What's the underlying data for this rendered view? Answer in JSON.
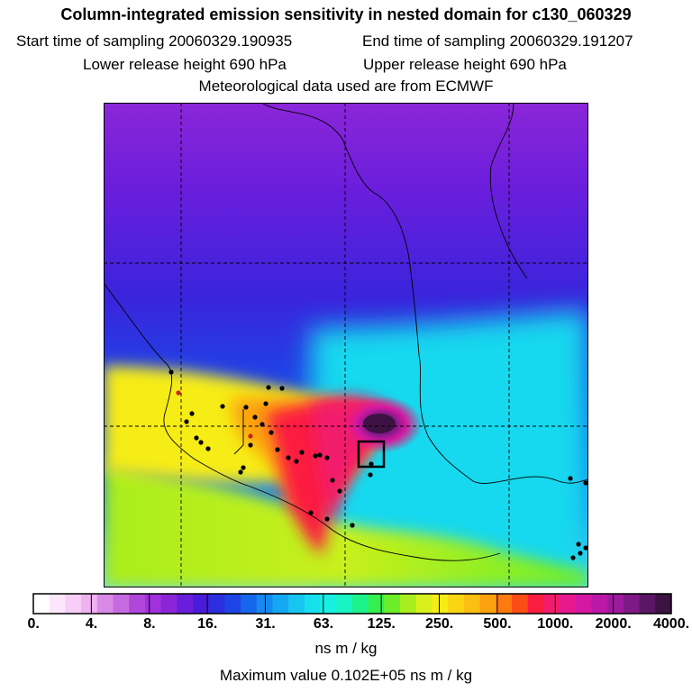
{
  "header": {
    "title": "Column-integrated emission sensitivity in nested domain for c130_060329",
    "start_time": "Start time of sampling 20060329.190935",
    "end_time": "End time of sampling 20060329.191207",
    "lower_release": "Lower release height  690 hPa",
    "upper_release": "Upper release height  690 hPa",
    "met_data": "Meteorological data used are from ECMWF"
  },
  "colorbar": {
    "colors": [
      "#ffffff",
      "#fde6fb",
      "#f8cdf6",
      "#eeb2f0",
      "#d98ae6",
      "#c66bdf",
      "#b146db",
      "#a131dc",
      "#8b26d8",
      "#6a1edc",
      "#4a1cd9",
      "#2b2fe0",
      "#1d45e6",
      "#1767ec",
      "#1689f0",
      "#15a8f2",
      "#16c6f1",
      "#16e0ec",
      "#16f0e2",
      "#18f4c3",
      "#1ef28a",
      "#35ee50",
      "#6ced2a",
      "#a8ee1e",
      "#d9f01c",
      "#f6ec18",
      "#fbd514",
      "#fbbe12",
      "#fca210",
      "#fc7a10",
      "#fc4d16",
      "#fb1d3f",
      "#f21c6c",
      "#e8198e",
      "#d418a2",
      "#bc18a8",
      "#9e1a9e",
      "#7d1a86",
      "#5a1764",
      "#3c1242"
    ],
    "ticks": [
      "0.",
      "4.",
      "8.",
      "16.",
      "31.",
      "63.",
      "125.",
      "250.",
      "500.",
      "1000.",
      "2000.",
      "4000."
    ],
    "units": "ns m / kg"
  },
  "max_value": "Maximum value  0.102E+05 ns m / kg"
}
